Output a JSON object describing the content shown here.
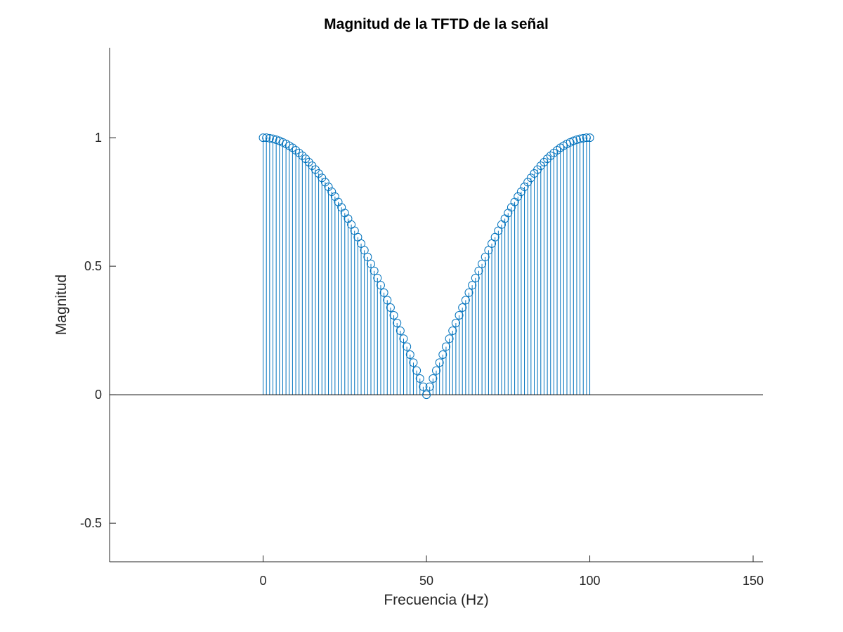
{
  "chart_data": {
    "type": "stem",
    "title": "Magnitud de la TFTD de la señal",
    "xlabel": "Frecuencia (Hz)",
    "ylabel": "Magnitud",
    "xlim": [
      -47,
      153
    ],
    "ylim": [
      -0.65,
      1.35
    ],
    "xticks": [
      0,
      50,
      100,
      150
    ],
    "xtick_labels": [
      "0",
      "50",
      "100",
      "150"
    ],
    "yticks": [
      -0.5,
      0,
      0.5,
      1
    ],
    "ytick_labels": [
      "-0.5",
      "0",
      "0.5",
      "1"
    ],
    "grid": false,
    "legend": "none",
    "baseline": 0,
    "series_color": "#0072bd",
    "x": [
      0,
      1,
      2,
      3,
      4,
      5,
      6,
      7,
      8,
      9,
      10,
      11,
      12,
      13,
      14,
      15,
      16,
      17,
      18,
      19,
      20,
      21,
      22,
      23,
      24,
      25,
      26,
      27,
      28,
      29,
      30,
      31,
      32,
      33,
      34,
      35,
      36,
      37,
      38,
      39,
      40,
      41,
      42,
      43,
      44,
      45,
      46,
      47,
      48,
      49,
      50,
      51,
      52,
      53,
      54,
      55,
      56,
      57,
      58,
      59,
      60,
      61,
      62,
      63,
      64,
      65,
      66,
      67,
      68,
      69,
      70,
      71,
      72,
      73,
      74,
      75,
      76,
      77,
      78,
      79,
      80,
      81,
      82,
      83,
      84,
      85,
      86,
      87,
      88,
      89,
      90,
      91,
      92,
      93,
      94,
      95,
      96,
      97,
      98,
      99,
      100
    ],
    "values": [
      1.0,
      1.0,
      0.998,
      0.996,
      0.992,
      0.988,
      0.982,
      0.976,
      0.969,
      0.961,
      0.951,
      0.941,
      0.93,
      0.918,
      0.905,
      0.891,
      0.876,
      0.861,
      0.844,
      0.827,
      0.809,
      0.79,
      0.771,
      0.75,
      0.729,
      0.707,
      0.685,
      0.662,
      0.638,
      0.613,
      0.588,
      0.562,
      0.536,
      0.509,
      0.482,
      0.454,
      0.426,
      0.397,
      0.368,
      0.339,
      0.309,
      0.279,
      0.249,
      0.218,
      0.187,
      0.156,
      0.125,
      0.094,
      0.063,
      0.031,
      0.0,
      0.031,
      0.063,
      0.094,
      0.125,
      0.156,
      0.187,
      0.218,
      0.249,
      0.279,
      0.309,
      0.339,
      0.368,
      0.397,
      0.426,
      0.454,
      0.482,
      0.509,
      0.536,
      0.562,
      0.588,
      0.613,
      0.638,
      0.662,
      0.685,
      0.707,
      0.729,
      0.75,
      0.771,
      0.79,
      0.809,
      0.827,
      0.844,
      0.861,
      0.876,
      0.891,
      0.905,
      0.918,
      0.93,
      0.941,
      0.951,
      0.961,
      0.969,
      0.976,
      0.982,
      0.988,
      0.992,
      0.996,
      0.998,
      1.0,
      1.0
    ]
  }
}
